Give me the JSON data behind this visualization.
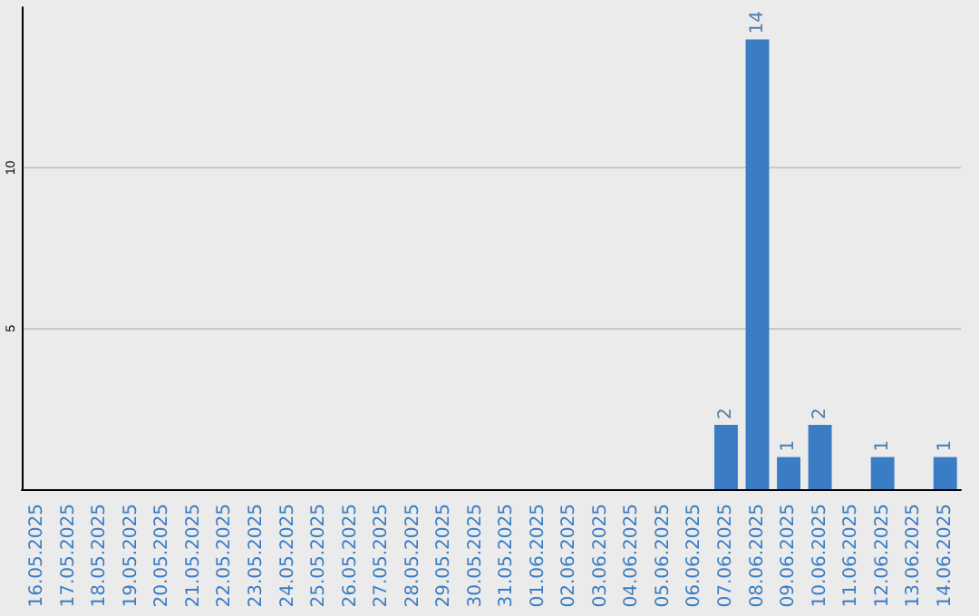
{
  "chart_data": {
    "type": "bar",
    "categories": [
      "16.05.2025",
      "17.05.2025",
      "18.05.2025",
      "19.05.2025",
      "20.05.2025",
      "21.05.2025",
      "22.05.2025",
      "23.05.2025",
      "24.05.2025",
      "25.05.2025",
      "26.05.2025",
      "27.05.2025",
      "28.05.2025",
      "29.05.2025",
      "30.05.2025",
      "31.05.2025",
      "01.06.2025",
      "02.06.2025",
      "03.06.2025",
      "04.06.2025",
      "05.06.2025",
      "06.06.2025",
      "07.06.2025",
      "08.06.2025",
      "09.06.2025",
      "10.06.2025",
      "11.06.2025",
      "12.06.2025",
      "13.06.2025",
      "14.06.2025"
    ],
    "values": [
      0,
      0,
      0,
      0,
      0,
      0,
      0,
      0,
      0,
      0,
      0,
      0,
      0,
      0,
      0,
      0,
      0,
      0,
      0,
      0,
      0,
      0,
      2,
      14,
      1,
      2,
      0,
      1,
      0,
      1
    ],
    "value_labels": [
      null,
      null,
      null,
      null,
      null,
      null,
      null,
      null,
      null,
      null,
      null,
      null,
      null,
      null,
      null,
      null,
      null,
      null,
      null,
      null,
      null,
      null,
      "2",
      "14",
      "1",
      "2",
      null,
      "1",
      null,
      "1"
    ],
    "color": "#3a7dc4",
    "ylim": [
      0,
      15
    ],
    "yticks": [
      {
        "value": 0,
        "label": null
      },
      5,
      10
    ],
    "grid": "y"
  }
}
